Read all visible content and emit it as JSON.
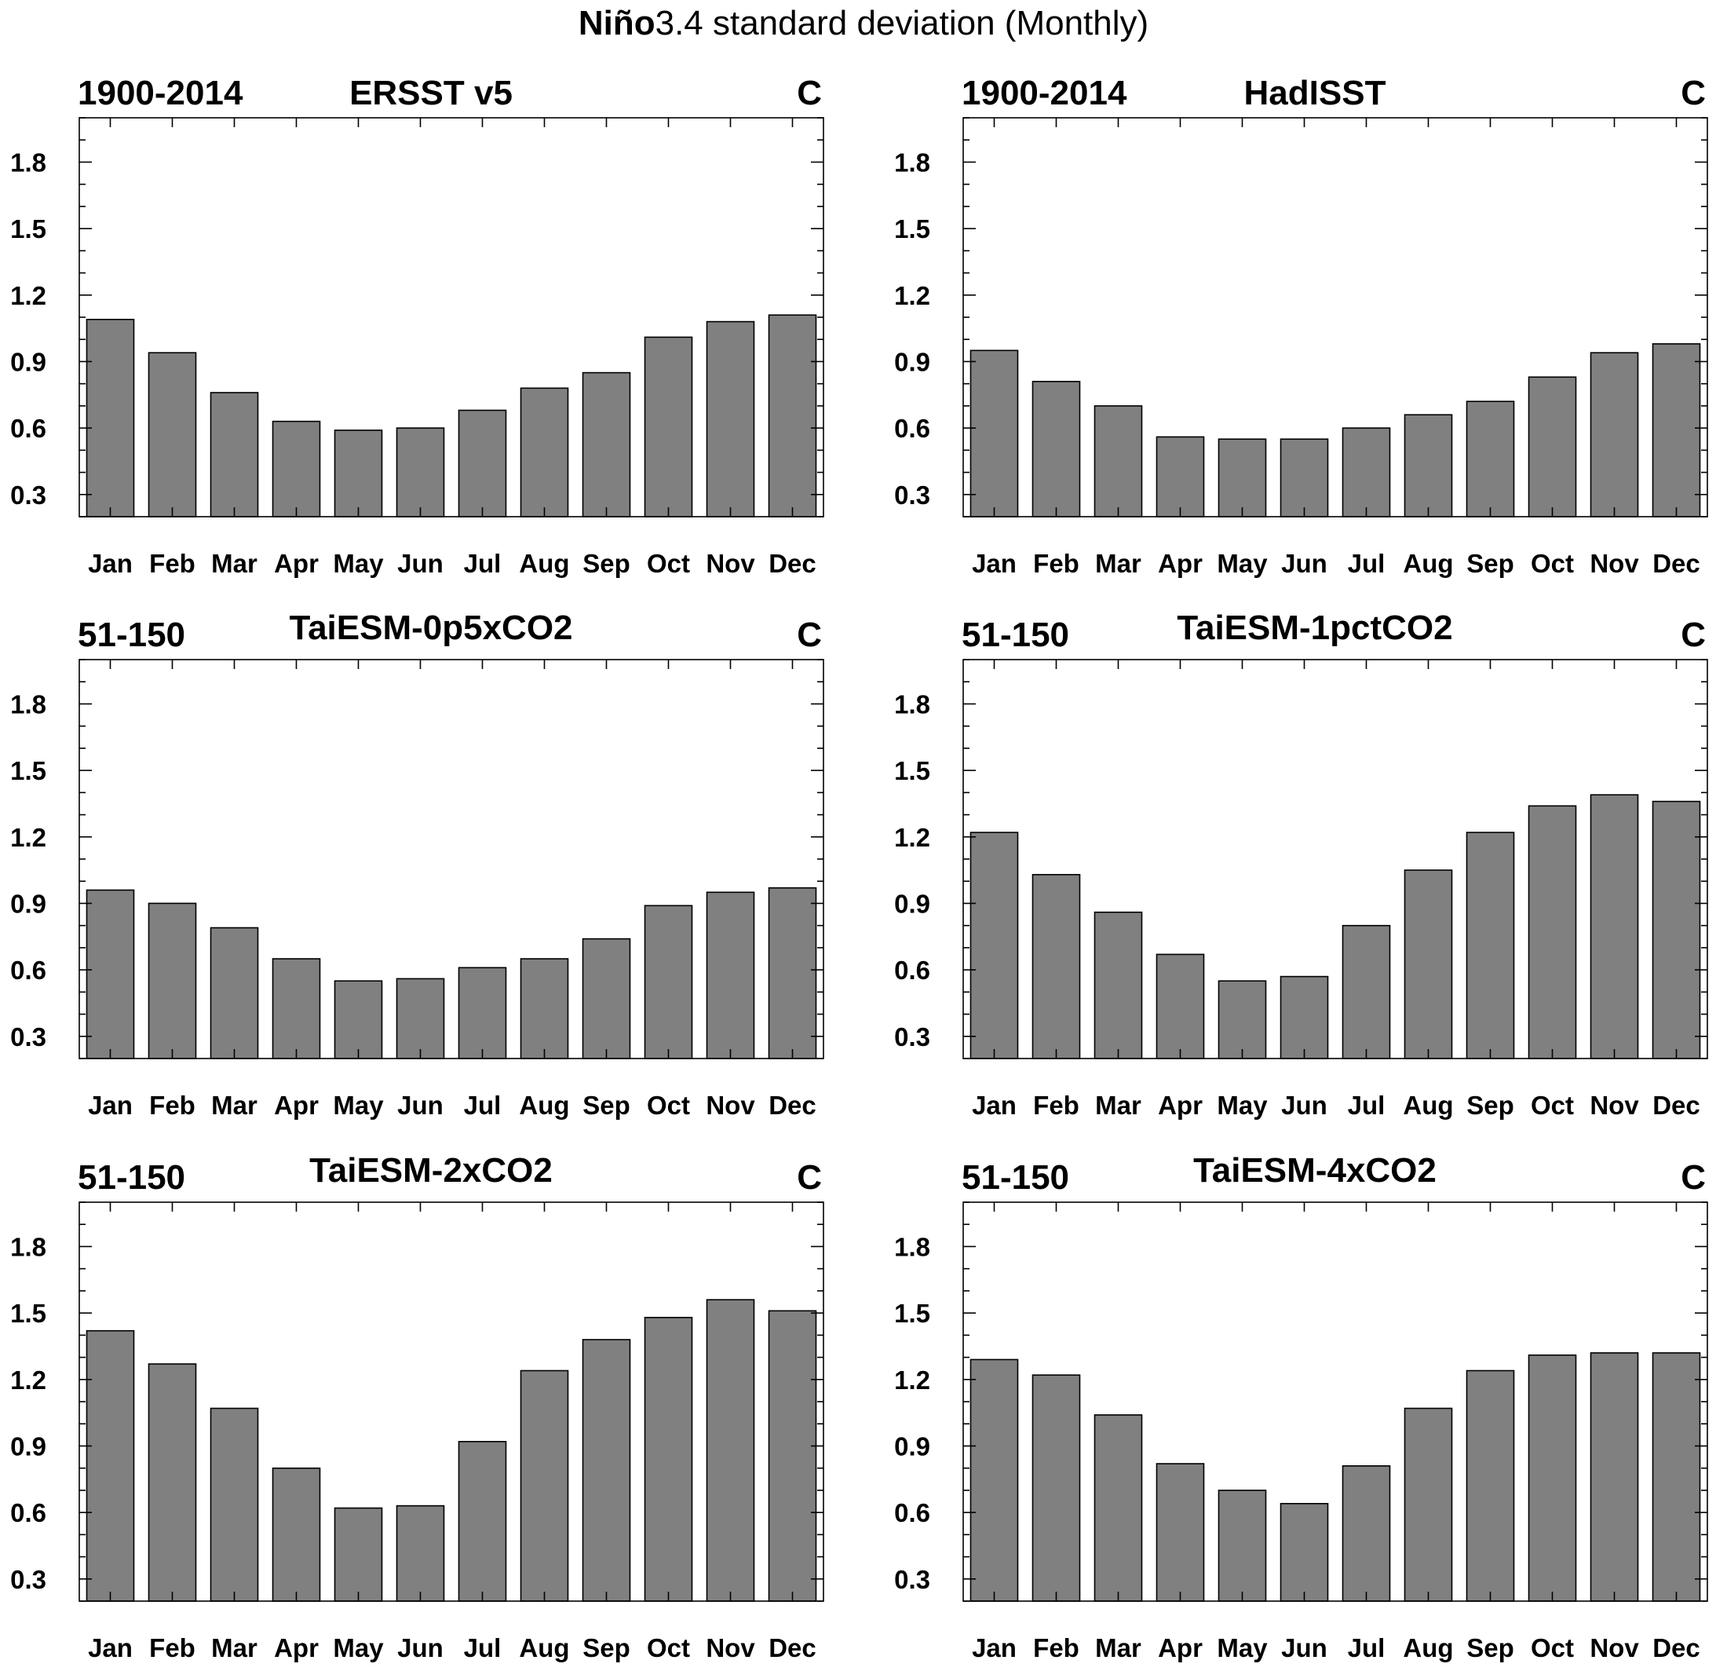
{
  "figure_title_bold": "Niño",
  "figure_title_rest": "3.4 standard deviation (Monthly)",
  "chart_data": [
    {
      "type": "bar",
      "title": "ERSST v5",
      "left_label": "1900-2014",
      "right_label": "C",
      "categories": [
        "Jan",
        "Feb",
        "Mar",
        "Apr",
        "May",
        "Jun",
        "Jul",
        "Aug",
        "Sep",
        "Oct",
        "Nov",
        "Dec"
      ],
      "values": [
        1.09,
        0.94,
        0.76,
        0.63,
        0.59,
        0.6,
        0.68,
        0.78,
        0.85,
        1.01,
        1.08,
        1.11
      ],
      "ylim": [
        0.2,
        2.0
      ],
      "yticks": [
        0.3,
        0.6,
        0.9,
        1.2,
        1.5,
        1.8
      ]
    },
    {
      "type": "bar",
      "title": "HadISST",
      "left_label": "1900-2014",
      "right_label": "C",
      "categories": [
        "Jan",
        "Feb",
        "Mar",
        "Apr",
        "May",
        "Jun",
        "Jul",
        "Aug",
        "Sep",
        "Oct",
        "Nov",
        "Dec"
      ],
      "values": [
        0.95,
        0.81,
        0.7,
        0.56,
        0.55,
        0.55,
        0.6,
        0.66,
        0.72,
        0.83,
        0.94,
        0.98
      ],
      "ylim": [
        0.2,
        2.0
      ],
      "yticks": [
        0.3,
        0.6,
        0.9,
        1.2,
        1.5,
        1.8
      ]
    },
    {
      "type": "bar",
      "title": "TaiESM-0p5xCO2",
      "left_label": "51-150",
      "right_label": "C",
      "categories": [
        "Jan",
        "Feb",
        "Mar",
        "Apr",
        "May",
        "Jun",
        "Jul",
        "Aug",
        "Sep",
        "Oct",
        "Nov",
        "Dec"
      ],
      "values": [
        0.96,
        0.9,
        0.79,
        0.65,
        0.55,
        0.56,
        0.61,
        0.65,
        0.74,
        0.89,
        0.95,
        0.97
      ],
      "ylim": [
        0.2,
        2.0
      ],
      "yticks": [
        0.3,
        0.6,
        0.9,
        1.2,
        1.5,
        1.8
      ]
    },
    {
      "type": "bar",
      "title": "TaiESM-1pctCO2",
      "left_label": "51-150",
      "right_label": "C",
      "categories": [
        "Jan",
        "Feb",
        "Mar",
        "Apr",
        "May",
        "Jun",
        "Jul",
        "Aug",
        "Sep",
        "Oct",
        "Nov",
        "Dec"
      ],
      "values": [
        1.22,
        1.03,
        0.86,
        0.67,
        0.55,
        0.57,
        0.8,
        1.05,
        1.22,
        1.34,
        1.39,
        1.36
      ],
      "ylim": [
        0.2,
        2.0
      ],
      "yticks": [
        0.3,
        0.6,
        0.9,
        1.2,
        1.5,
        1.8
      ]
    },
    {
      "type": "bar",
      "title": "TaiESM-2xCO2",
      "left_label": "51-150",
      "right_label": "C",
      "categories": [
        "Jan",
        "Feb",
        "Mar",
        "Apr",
        "May",
        "Jun",
        "Jul",
        "Aug",
        "Sep",
        "Oct",
        "Nov",
        "Dec"
      ],
      "values": [
        1.42,
        1.27,
        1.07,
        0.8,
        0.62,
        0.63,
        0.92,
        1.24,
        1.38,
        1.48,
        1.56,
        1.51
      ],
      "ylim": [
        0.2,
        2.0
      ],
      "yticks": [
        0.3,
        0.6,
        0.9,
        1.2,
        1.5,
        1.8
      ]
    },
    {
      "type": "bar",
      "title": "TaiESM-4xCO2",
      "left_label": "51-150",
      "right_label": "C",
      "categories": [
        "Jan",
        "Feb",
        "Mar",
        "Apr",
        "May",
        "Jun",
        "Jul",
        "Aug",
        "Sep",
        "Oct",
        "Nov",
        "Dec"
      ],
      "values": [
        1.29,
        1.22,
        1.04,
        0.82,
        0.7,
        0.64,
        0.81,
        1.07,
        1.24,
        1.31,
        1.32,
        1.32
      ],
      "ylim": [
        0.2,
        2.0
      ],
      "yticks": [
        0.3,
        0.6,
        0.9,
        1.2,
        1.5,
        1.8
      ]
    }
  ]
}
